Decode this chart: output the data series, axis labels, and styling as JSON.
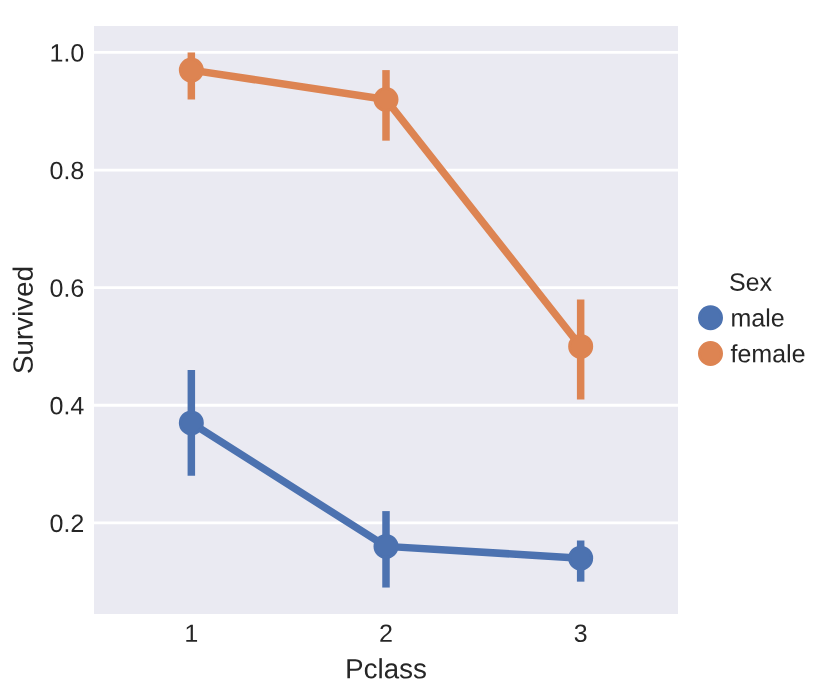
{
  "chart_data": {
    "type": "line",
    "xlabel": "Pclass",
    "ylabel": "Survived",
    "legend_title": "Sex",
    "categories": [
      "1",
      "2",
      "3"
    ],
    "series": [
      {
        "name": "male",
        "color": "#4c72b0",
        "values": [
          0.37,
          0.16,
          0.14
        ],
        "errors": [
          [
            0.28,
            0.46
          ],
          [
            0.09,
            0.22
          ],
          [
            0.1,
            0.17
          ]
        ]
      },
      {
        "name": "female",
        "color": "#dd8452",
        "values": [
          0.97,
          0.92,
          0.5
        ],
        "errors": [
          [
            0.92,
            1.0
          ],
          [
            0.85,
            0.97
          ],
          [
            0.41,
            0.58
          ]
        ]
      }
    ],
    "ylim": [
      0.045,
      1.045
    ],
    "yticks": [
      0.2,
      0.4,
      0.6,
      0.8,
      {
        "value": 1,
        "label": "1.0"
      }
    ],
    "grid": "y",
    "legend": "right",
    "marker": "circle",
    "line_style": "solid"
  }
}
